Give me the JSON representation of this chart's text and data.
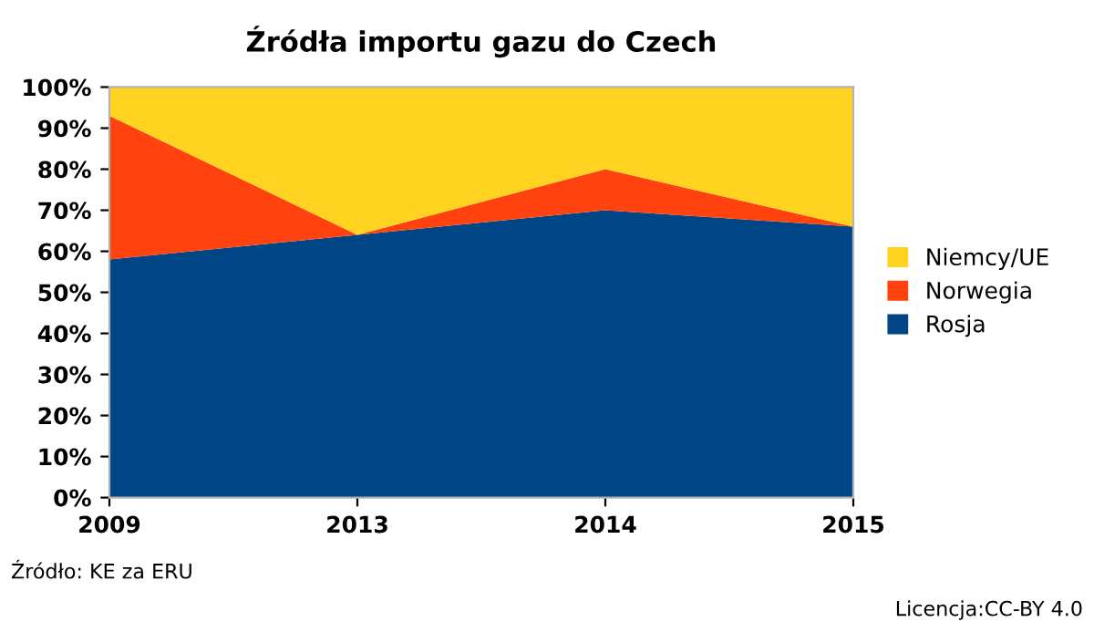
{
  "chart_data": {
    "type": "area",
    "title": "Źródła importu gazu do Czech",
    "stacked": true,
    "categories": [
      "2009",
      "2013",
      "2014",
      "2015"
    ],
    "series": [
      {
        "name": "Rosja",
        "color": "#004586",
        "values": [
          58,
          64,
          70,
          66
        ]
      },
      {
        "name": "Norwegia",
        "color": "#ff420e",
        "values": [
          35,
          0,
          10,
          0
        ]
      },
      {
        "name": "Niemcy/UE",
        "color": "#ffd320",
        "values": [
          7,
          36,
          20,
          34
        ]
      }
    ],
    "ylim": [
      0,
      100
    ],
    "yticks": [
      {
        "value": 0,
        "label": "0%"
      },
      {
        "value": 10,
        "label": "10%"
      },
      {
        "value": 20,
        "label": "20%"
      },
      {
        "value": 30,
        "label": "30%"
      },
      {
        "value": 40,
        "label": "40%"
      },
      {
        "value": 50,
        "label": "50%"
      },
      {
        "value": 60,
        "label": "60%"
      },
      {
        "value": 70,
        "label": "70%"
      },
      {
        "value": 80,
        "label": "80%"
      },
      {
        "value": 90,
        "label": "90%"
      },
      {
        "value": 100,
        "label": "100%"
      }
    ],
    "legend": "right",
    "grid": false,
    "annotations": [
      "Źródło: KE za ERU",
      "Licencja:CC-BY 4.0"
    ]
  }
}
